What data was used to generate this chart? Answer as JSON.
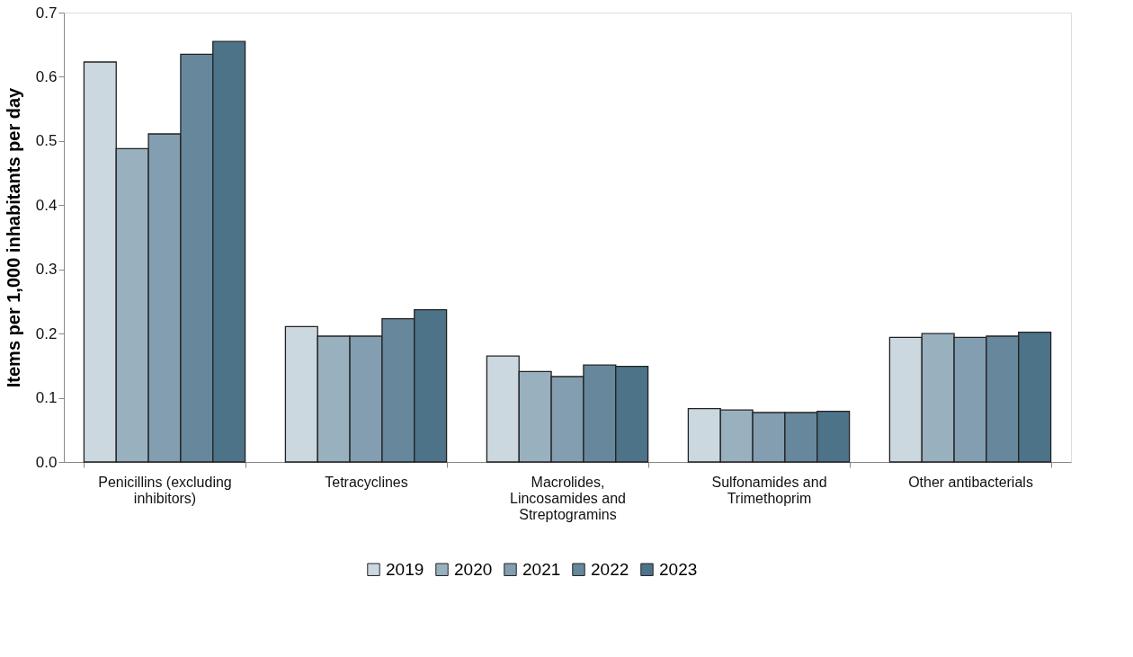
{
  "chart_data": {
    "type": "bar",
    "ylabel": "Items per 1,000 inhabitants per day",
    "categories": [
      "Penicillins (excluding inhibitors)",
      "Tetracyclines",
      "Macrolides, Lincosamides and Streptogramins",
      "Sulfonamides and Trimethoprim",
      "Other antibacterials"
    ],
    "series": [
      {
        "name": "2019",
        "color": "#ccd8df",
        "values": [
          0.623,
          0.211,
          0.165,
          0.083,
          0.194
        ]
      },
      {
        "name": "2020",
        "color": "#99b0bf",
        "values": [
          0.488,
          0.196,
          0.141,
          0.081,
          0.2
        ]
      },
      {
        "name": "2021",
        "color": "#839eb0",
        "values": [
          0.511,
          0.196,
          0.133,
          0.077,
          0.194
        ]
      },
      {
        "name": "2022",
        "color": "#67889c",
        "values": [
          0.635,
          0.223,
          0.151,
          0.077,
          0.196
        ]
      },
      {
        "name": "2023",
        "color": "#4d7389",
        "values": [
          0.655,
          0.237,
          0.149,
          0.079,
          0.202
        ]
      }
    ],
    "ylim": [
      0,
      0.7
    ],
    "yticks": [
      {
        "value": 0,
        "label": "0.0"
      },
      0.1,
      0.2,
      0.3,
      0.4,
      0.5,
      0.6,
      0.7
    ],
    "grid": false,
    "legend": "bottom"
  }
}
